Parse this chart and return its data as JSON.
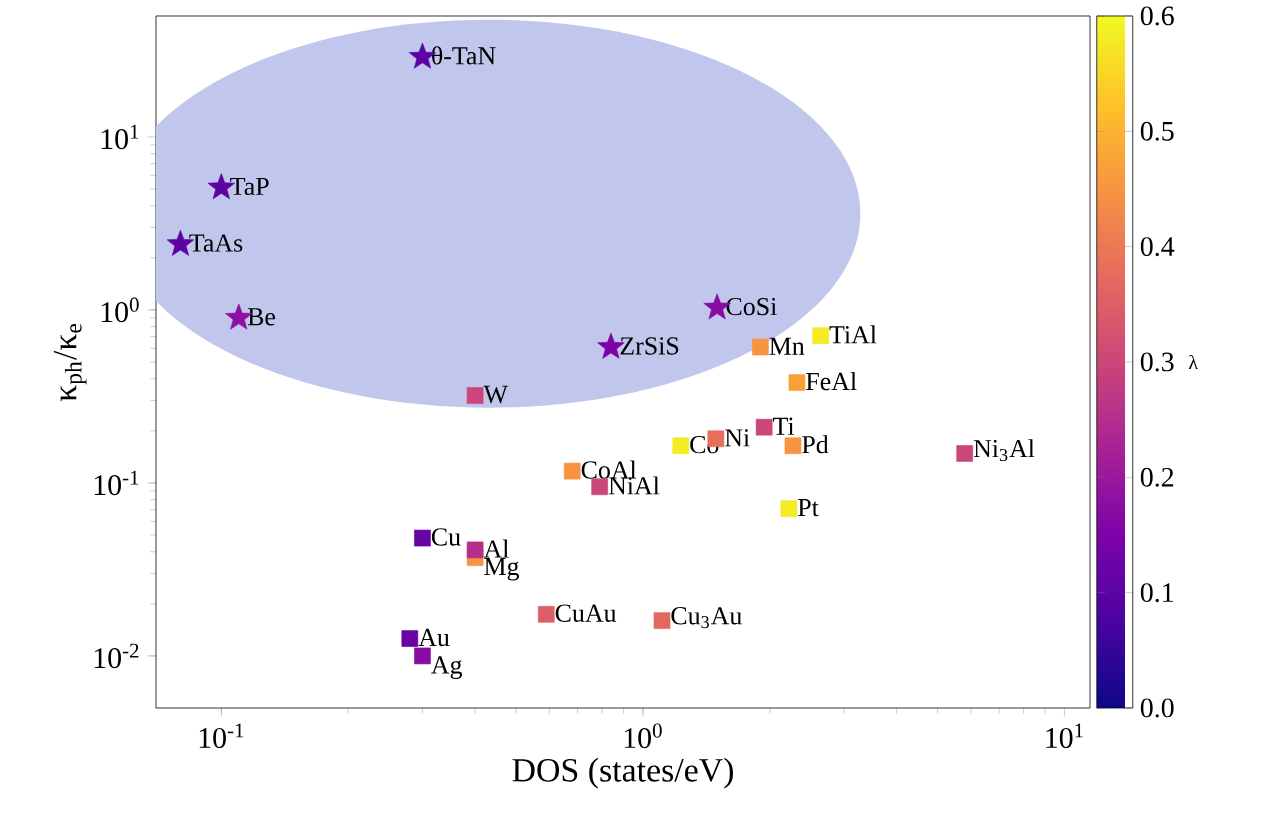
{
  "chart_data": {
    "type": "scatter",
    "xlabel": "DOS (states/eV)",
    "ylabel": "κ$_{ph}$/κ$_{e}$",
    "clabel": "λ",
    "log": "xy",
    "grid": false,
    "xlim": [
      0.07,
      11.5
    ],
    "ylim": [
      0.005,
      50
    ],
    "xticks": [
      {
        "value": 0.1,
        "label": "10$^{-1}$"
      },
      {
        "value": 1,
        "label": "10$^{0}$"
      },
      {
        "value": 10,
        "label": "10$^{1}$"
      }
    ],
    "yticks": [
      {
        "value": 0.01,
        "label": "10$^{-2}$"
      },
      {
        "value": 0.1,
        "label": "10$^{-1}$"
      },
      {
        "value": 1,
        "label": "10$^{0}$"
      },
      {
        "value": 10,
        "label": "10$^{1}$"
      }
    ],
    "clim": [
      0,
      0.6
    ],
    "cticks": [
      {
        "value": 0,
        "label": "0.0"
      },
      0.1,
      0.2,
      0.3,
      0.4,
      0.5,
      0.6
    ],
    "series": [
      {
        "type": "scatter",
        "marker": "star",
        "x": [
          0.3,
          0.1,
          0.08,
          0.11,
          0.84,
          1.5
        ],
        "values": [
          29,
          5.1,
          2.4,
          0.9,
          0.61,
          1.03
        ],
        "cvalues": [
          0.1,
          0.1,
          0.1,
          0.18,
          0.15,
          0.17
        ],
        "colors": [
          "#5c03a3",
          "#5c03a3",
          "#5c03a3",
          "#8e0fa1",
          "#7d03a8",
          "#880ba3"
        ]
      },
      {
        "type": "scatter",
        "marker": "square",
        "colors": [
          "#cb4679",
          "#f89441",
          "#f3eb23",
          "#f9a139",
          "#cb4679",
          "#e66e5b",
          "#f3eb23",
          "#f89441",
          "#f89441",
          "#cb4679",
          "#f3eb23",
          "#cb4679",
          "#dc5f66",
          "#e3695f",
          "#6903a5",
          "#f89441",
          "#b42e8c",
          "#6903a5",
          "#880ba3"
        ],
        "x": [
          0.4,
          1.9,
          2.64,
          2.32,
          1.94,
          1.49,
          1.23,
          2.27,
          0.68,
          0.79,
          2.22,
          5.8,
          0.59,
          1.11,
          0.3,
          0.4,
          0.4,
          0.28,
          0.3
        ],
        "values": [
          0.32,
          0.61,
          0.71,
          0.38,
          0.21,
          0.18,
          0.164,
          0.164,
          0.117,
          0.095,
          0.071,
          0.148,
          0.0174,
          0.016,
          0.048,
          0.037,
          0.041,
          0.0126,
          0.01
        ],
        "cvalues": [
          0.3,
          0.45,
          0.58,
          0.47,
          0.3,
          0.38,
          0.58,
          0.45,
          0.45,
          0.3,
          0.58,
          0.3,
          0.35,
          0.37,
          0.12,
          0.45,
          0.25,
          0.12,
          0.17
        ]
      }
    ],
    "annotations": [
      {
        "text": "θ-TaN",
        "x": 0.3,
        "y": 29
      },
      {
        "text": "TaP",
        "x": 0.1,
        "y": 5.1
      },
      {
        "text": "TaAs",
        "x": 0.08,
        "y": 2.4
      },
      {
        "text": "Be",
        "x": 0.11,
        "y": 0.9
      },
      {
        "text": "ZrSiS",
        "x": 0.84,
        "y": 0.61
      },
      {
        "text": "CoSi",
        "x": 1.5,
        "y": 1.03
      },
      {
        "text": "W",
        "x": 0.4,
        "y": 0.32
      },
      {
        "text": "Mn",
        "x": 1.9,
        "y": 0.61
      },
      {
        "text": "TiAl",
        "x": 2.64,
        "y": 0.71
      },
      {
        "text": "FeAl",
        "x": 2.32,
        "y": 0.38
      },
      {
        "text": "Ti",
        "x": 1.94,
        "y": 0.21
      },
      {
        "text": "Ni",
        "x": 1.49,
        "y": 0.18
      },
      {
        "text": "Co",
        "x": 1.23,
        "y": 0.164
      },
      {
        "text": "Pd",
        "x": 2.27,
        "y": 0.164
      },
      {
        "text": "CoAl",
        "x": 0.68,
        "y": 0.117
      },
      {
        "text": "NiAl",
        "x": 0.79,
        "y": 0.095
      },
      {
        "text": "Pt",
        "x": 2.22,
        "y": 0.071
      },
      {
        "text": "Ni$_{3}$Al",
        "x": 5.8,
        "y": 0.148
      },
      {
        "text": "CuAu",
        "x": 0.59,
        "y": 0.0174
      },
      {
        "text": "Cu$_{3}$Au",
        "x": 1.11,
        "y": 0.016
      },
      {
        "text": "Cu",
        "x": 0.3,
        "y": 0.048
      },
      {
        "text": "Al",
        "x": 0.4,
        "y": 0.041
      },
      {
        "text": "Mg",
        "x": 0.4,
        "y": 0.037
      },
      {
        "text": "Au",
        "x": 0.28,
        "y": 0.0126
      },
      {
        "text": "Ag",
        "x": 0.3,
        "y": 0.01
      }
    ]
  }
}
